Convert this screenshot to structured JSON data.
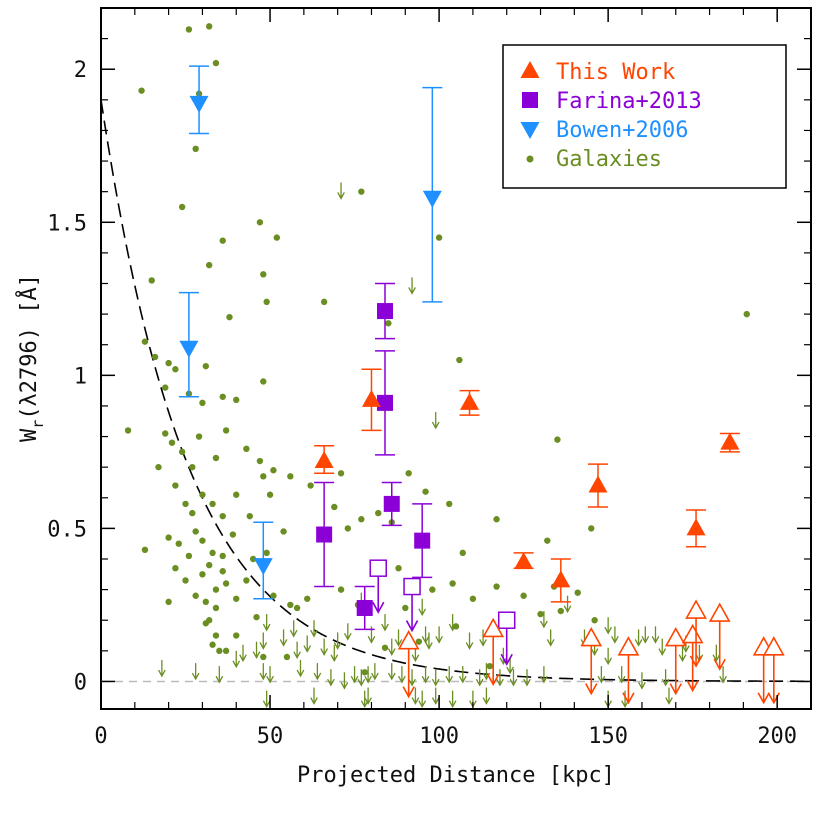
{
  "chart_data": {
    "type": "scatter",
    "title": "",
    "xlabel": "Projected Distance [kpc]",
    "ylabel": "W_r(λ2796) [Å]",
    "ylabel_parts": {
      "main": "W",
      "sub": "r",
      "rest": "(λ2796) [Å]"
    },
    "xlim": [
      0,
      210
    ],
    "ylim": [
      -0.09,
      2.2
    ],
    "x_ticks": [
      0,
      50,
      100,
      150,
      200
    ],
    "x_tick_labels": [
      "0",
      "50",
      "100",
      "150",
      "200"
    ],
    "y_ticks": [
      0,
      0.5,
      1,
      1.5,
      2
    ],
    "y_tick_labels": [
      "0",
      "0.5",
      "1",
      "1.5",
      "2"
    ],
    "grid": false,
    "legend_placement": "top-right",
    "colors": {
      "this_work": "#ff4500",
      "farina": "#8b00d6",
      "bowen": "#1e90ff",
      "galaxies": "#6b8e23",
      "model_curve": "#000000",
      "zero_line": "#bbbbbb"
    },
    "legend": [
      {
        "label": "This Work",
        "marker": "triangle-up",
        "color": "#ff4500"
      },
      {
        "label": "Farina+2013",
        "marker": "square",
        "color": "#8b00d6"
      },
      {
        "label": "Bowen+2006",
        "marker": "triangle-down",
        "color": "#1e90ff"
      },
      {
        "label": "Galaxies",
        "marker": "circle",
        "color": "#6b8e23"
      }
    ],
    "model_curve": {
      "style": "dashed",
      "form": "W0*exp(-x/L)",
      "W0": 1.9,
      "L": 26
    },
    "zero_line": {
      "y": 0,
      "style": "dashed"
    },
    "series": [
      {
        "name": "This Work",
        "marker": "triangle-up",
        "detections": [
          {
            "x": 66,
            "y": 0.72,
            "ylo": 0.68,
            "yhi": 0.77
          },
          {
            "x": 80,
            "y": 0.92,
            "ylo": 0.82,
            "yhi": 1.02
          },
          {
            "x": 109,
            "y": 0.91,
            "ylo": 0.87,
            "yhi": 0.95
          },
          {
            "x": 125,
            "y": 0.39,
            "ylo": 0.37,
            "yhi": 0.42
          },
          {
            "x": 136,
            "y": 0.33,
            "ylo": 0.26,
            "yhi": 0.4
          },
          {
            "x": 147,
            "y": 0.64,
            "ylo": 0.57,
            "yhi": 0.71
          },
          {
            "x": 176,
            "y": 0.5,
            "ylo": 0.44,
            "yhi": 0.56
          },
          {
            "x": 186,
            "y": 0.78,
            "ylo": 0.75,
            "yhi": 0.81
          }
        ],
        "upper_limits": [
          {
            "x": 91,
            "y": 0.13
          },
          {
            "x": 116,
            "y": 0.17
          },
          {
            "x": 145,
            "y": 0.14
          },
          {
            "x": 156,
            "y": 0.11
          },
          {
            "x": 170,
            "y": 0.14
          },
          {
            "x": 175,
            "y": 0.15
          },
          {
            "x": 176,
            "y": 0.23
          },
          {
            "x": 183,
            "y": 0.22
          },
          {
            "x": 196,
            "y": 0.11
          },
          {
            "x": 199,
            "y": 0.11
          }
        ]
      },
      {
        "name": "Farina+2013",
        "marker": "square",
        "detections": [
          {
            "x": 66,
            "y": 0.48,
            "ylo": 0.31,
            "yhi": 0.65
          },
          {
            "x": 78,
            "y": 0.24,
            "ylo": 0.17,
            "yhi": 0.31
          },
          {
            "x": 84,
            "y": 1.21,
            "ylo": 1.12,
            "yhi": 1.3
          },
          {
            "x": 84,
            "y": 0.91,
            "ylo": 0.74,
            "yhi": 1.08
          },
          {
            "x": 86,
            "y": 0.58,
            "ylo": 0.51,
            "yhi": 0.65
          },
          {
            "x": 95,
            "y": 0.46,
            "ylo": 0.34,
            "yhi": 0.58
          }
        ],
        "upper_limits": [
          {
            "x": 82,
            "y": 0.37
          },
          {
            "x": 92,
            "y": 0.31
          },
          {
            "x": 120,
            "y": 0.2
          }
        ]
      },
      {
        "name": "Bowen+2006",
        "marker": "triangle-down",
        "detections": [
          {
            "x": 29,
            "y": 1.89,
            "ylo": 1.79,
            "yhi": 2.01
          },
          {
            "x": 26,
            "y": 1.09,
            "ylo": 0.93,
            "yhi": 1.27
          },
          {
            "x": 48,
            "y": 0.38,
            "ylo": 0.27,
            "yhi": 0.52
          },
          {
            "x": 98,
            "y": 1.58,
            "ylo": 1.24,
            "yhi": 1.94
          }
        ]
      },
      {
        "name": "Galaxies",
        "marker": "circle",
        "points": [
          [
            26,
            2.13
          ],
          [
            32,
            2.14
          ],
          [
            34,
            2.02
          ],
          [
            28,
            1.74
          ],
          [
            29,
            1.92
          ],
          [
            12,
            1.93
          ],
          [
            24,
            1.55
          ],
          [
            36,
            1.44
          ],
          [
            47,
            1.5
          ],
          [
            48,
            1.33
          ],
          [
            52,
            1.45
          ],
          [
            15,
            1.31
          ],
          [
            32,
            1.36
          ],
          [
            38,
            1.19
          ],
          [
            49,
            1.24
          ],
          [
            66,
            1.24
          ],
          [
            77,
            1.6
          ],
          [
            100,
            1.45
          ],
          [
            85,
            1.17
          ],
          [
            106,
            1.05
          ],
          [
            191,
            1.2
          ],
          [
            13,
            1.11
          ],
          [
            16,
            1.06
          ],
          [
            20,
            1.04
          ],
          [
            22,
            1.02
          ],
          [
            26,
            0.94
          ],
          [
            19,
            0.96
          ],
          [
            30,
            0.91
          ],
          [
            31,
            1.03
          ],
          [
            36,
            0.93
          ],
          [
            40,
            0.92
          ],
          [
            48,
            0.98
          ],
          [
            8,
            0.82
          ],
          [
            19,
            0.81
          ],
          [
            21,
            0.78
          ],
          [
            24,
            0.75
          ],
          [
            27,
            0.7
          ],
          [
            29,
            0.8
          ],
          [
            34,
            0.73
          ],
          [
            37,
            0.82
          ],
          [
            43,
            0.76
          ],
          [
            47,
            0.72
          ],
          [
            51,
            0.69
          ],
          [
            17,
            0.7
          ],
          [
            22,
            0.64
          ],
          [
            25,
            0.58
          ],
          [
            27,
            0.55
          ],
          [
            30,
            0.61
          ],
          [
            33,
            0.58
          ],
          [
            36,
            0.54
          ],
          [
            40,
            0.61
          ],
          [
            44,
            0.54
          ],
          [
            48,
            0.67
          ],
          [
            50,
            0.61
          ],
          [
            56,
            0.67
          ],
          [
            62,
            0.64
          ],
          [
            69,
            0.57
          ],
          [
            71,
            0.68
          ],
          [
            73,
            0.5
          ],
          [
            77,
            0.53
          ],
          [
            82,
            0.55
          ],
          [
            86,
            0.52
          ],
          [
            91,
            0.68
          ],
          [
            96,
            0.62
          ],
          [
            103,
            0.58
          ],
          [
            107,
            0.42
          ],
          [
            117,
            0.53
          ],
          [
            132,
            0.46
          ],
          [
            135,
            0.79
          ],
          [
            145,
            0.5
          ],
          [
            13,
            0.43
          ],
          [
            20,
            0.47
          ],
          [
            23,
            0.45
          ],
          [
            26,
            0.41
          ],
          [
            28,
            0.49
          ],
          [
            30,
            0.46
          ],
          [
            33,
            0.42
          ],
          [
            36,
            0.41
          ],
          [
            39,
            0.48
          ],
          [
            45,
            0.4
          ],
          [
            49,
            0.42
          ],
          [
            54,
            0.49
          ],
          [
            22,
            0.37
          ],
          [
            25,
            0.33
          ],
          [
            30,
            0.35
          ],
          [
            32,
            0.38
          ],
          [
            34,
            0.3
          ],
          [
            36,
            0.36
          ],
          [
            28,
            0.28
          ],
          [
            31,
            0.26
          ],
          [
            34,
            0.24
          ],
          [
            37,
            0.32
          ],
          [
            43,
            0.33
          ],
          [
            20,
            0.26
          ],
          [
            32,
            0.2
          ],
          [
            40,
            0.27
          ],
          [
            46,
            0.21
          ],
          [
            51,
            0.28
          ],
          [
            56,
            0.25
          ],
          [
            58,
            0.24
          ],
          [
            61,
            0.27
          ],
          [
            71,
            0.3
          ],
          [
            76,
            0.25
          ],
          [
            88,
            0.37
          ],
          [
            90,
            0.24
          ],
          [
            98,
            0.3
          ],
          [
            104,
            0.32
          ],
          [
            110,
            0.27
          ],
          [
            117,
            0.31
          ],
          [
            125,
            0.28
          ],
          [
            134,
            0.31
          ],
          [
            136,
            0.23
          ],
          [
            141,
            0.29
          ],
          [
            146,
            0.2
          ],
          [
            31,
            0.19
          ],
          [
            34,
            0.15
          ],
          [
            40,
            0.15
          ],
          [
            33,
            0.12
          ],
          [
            35,
            0.1
          ],
          [
            37,
            0.1
          ],
          [
            48,
            0.08
          ],
          [
            55,
            0.08
          ],
          [
            78,
            0.03
          ],
          [
            84,
            0.11
          ],
          [
            94,
            0.13
          ],
          [
            105,
            0.18
          ],
          [
            115,
            0.05
          ],
          [
            130,
            0.22
          ]
        ]
      },
      {
        "name": "Galaxies (upper limits)",
        "marker": "arrow-down",
        "points": [
          [
            71,
            1.63
          ],
          [
            92,
            1.32
          ],
          [
            99,
            0.88
          ],
          [
            77,
            0.29
          ],
          [
            84,
            0.22
          ],
          [
            95,
            0.27
          ],
          [
            104,
            0.22
          ],
          [
            131,
            0.23
          ],
          [
            138,
            0.28
          ],
          [
            150,
            0.21
          ],
          [
            143,
            0.17
          ],
          [
            133,
            0.17
          ],
          [
            113,
            0.17
          ],
          [
            109,
            0.16
          ],
          [
            100,
            0.18
          ],
          [
            96,
            0.18
          ],
          [
            88,
            0.17
          ],
          [
            80,
            0.18
          ],
          [
            73,
            0.19
          ],
          [
            63,
            0.2
          ],
          [
            57,
            0.2
          ],
          [
            54,
            0.17
          ],
          [
            46,
            0.13
          ],
          [
            42,
            0.12
          ],
          [
            40,
            0.1
          ],
          [
            48,
            0.16
          ],
          [
            49,
            0.22
          ],
          [
            58,
            0.13
          ],
          [
            61,
            0.15
          ],
          [
            66,
            0.14
          ],
          [
            70,
            0.16
          ],
          [
            69,
            0.12
          ],
          [
            86,
            0.14
          ],
          [
            93,
            0.12
          ],
          [
            97,
            0.16
          ],
          [
            119,
            0.11
          ],
          [
            121,
            0.08
          ],
          [
            146,
            0.14
          ],
          [
            150,
            0.11
          ],
          [
            152,
            0.18
          ],
          [
            159,
            0.17
          ],
          [
            161,
            0.18
          ],
          [
            164,
            0.18
          ],
          [
            166,
            0.14
          ],
          [
            172,
            0.12
          ],
          [
            173,
            0.15
          ],
          [
            177,
            0.12
          ],
          [
            182,
            0.12
          ],
          [
            18,
            0.07
          ],
          [
            28,
            0.06
          ],
          [
            35,
            0.05
          ],
          [
            48,
            0.06
          ],
          [
            50,
            0.05
          ],
          [
            59,
            0.07
          ],
          [
            64,
            0.06
          ],
          [
            68,
            0.04
          ],
          [
            72,
            0.03
          ],
          [
            75,
            0.05
          ],
          [
            77,
            0.04
          ],
          [
            79,
            0.05
          ],
          [
            81,
            0.06
          ],
          [
            86,
            0.06
          ],
          [
            89,
            0.05
          ],
          [
            92,
            0.04
          ],
          [
            96,
            0.05
          ],
          [
            99,
            0.04
          ],
          [
            103,
            0.05
          ],
          [
            107,
            0.05
          ],
          [
            112,
            0.04
          ],
          [
            114,
            0.06
          ],
          [
            118,
            0.04
          ],
          [
            122,
            0.04
          ],
          [
            126,
            0.04
          ],
          [
            131,
            0.05
          ],
          [
            148,
            0.05
          ],
          [
            154,
            0.05
          ],
          [
            160,
            0.03
          ],
          [
            167,
            0.04
          ],
          [
            184,
            0.05
          ],
          [
            79,
            -0.02
          ],
          [
            93,
            -0.02
          ],
          [
            99,
            -0.02
          ],
          [
            114,
            -0.02
          ],
          [
            168,
            -0.02
          ],
          [
            49,
            -0.03
          ],
          [
            63,
            -0.02
          ],
          [
            78,
            -0.03
          ],
          [
            95,
            -0.03
          ],
          [
            104,
            -0.03
          ],
          [
            110,
            -0.03
          ],
          [
            150,
            -0.03
          ],
          [
            155,
            -0.03
          ]
        ]
      }
    ]
  }
}
